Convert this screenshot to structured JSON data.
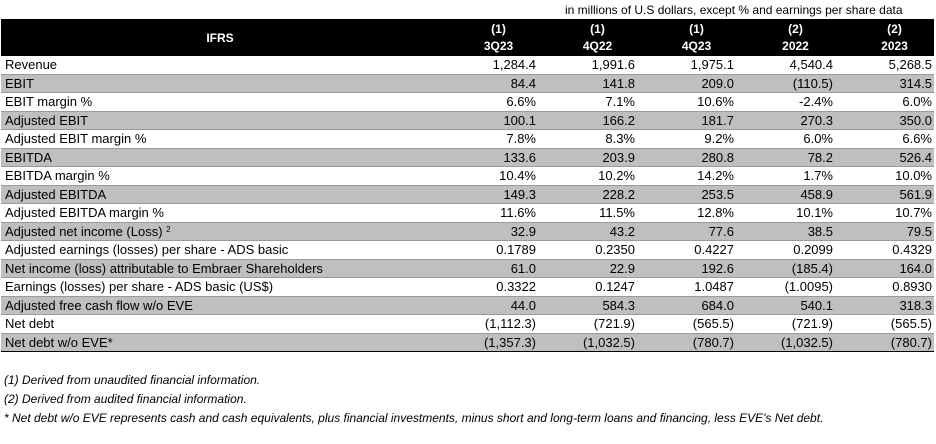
{
  "unit_note": "in millions of U.S dollars, except % and earnings per share data",
  "header": {
    "label": "IFRS",
    "columns": [
      {
        "note": "(1)",
        "period": "3Q23"
      },
      {
        "note": "(1)",
        "period": "4Q22"
      },
      {
        "note": "(1)",
        "period": "4Q23"
      },
      {
        "note": "(2)",
        "period": "2022"
      },
      {
        "note": "(2)",
        "period": "2023"
      }
    ]
  },
  "rows": [
    {
      "label": "Revenue",
      "values": [
        "1,284.4",
        "1,991.6",
        "1,975.1",
        "4,540.4",
        "5,268.5"
      ],
      "shaded": false
    },
    {
      "label": "EBIT",
      "values": [
        "84.4",
        "141.8",
        "209.0",
        "(110.5)",
        "314.5"
      ],
      "shaded": true
    },
    {
      "label": "EBIT margin %",
      "values": [
        "6.6%",
        "7.1%",
        "10.6%",
        "-2.4%",
        "6.0%"
      ],
      "shaded": false
    },
    {
      "label": "Adjusted EBIT",
      "values": [
        "100.1",
        "166.2",
        "181.7",
        "270.3",
        "350.0"
      ],
      "shaded": true
    },
    {
      "label": "Adjusted EBIT margin %",
      "values": [
        "7.8%",
        "8.3%",
        "9.2%",
        "6.0%",
        "6.6%"
      ],
      "shaded": false
    },
    {
      "label": "EBITDA",
      "values": [
        "133.6",
        "203.9",
        "280.8",
        "78.2",
        "526.4"
      ],
      "shaded": true
    },
    {
      "label": "EBITDA margin %",
      "values": [
        "10.4%",
        "10.2%",
        "14.2%",
        "1.7%",
        "10.0%"
      ],
      "shaded": false
    },
    {
      "label": "Adjusted EBITDA",
      "values": [
        "149.3",
        "228.2",
        "253.5",
        "458.9",
        "561.9"
      ],
      "shaded": true
    },
    {
      "label": "Adjusted EBITDA margin %",
      "values": [
        "11.6%",
        "11.5%",
        "12.8%",
        "10.1%",
        "10.7%"
      ],
      "shaded": false
    },
    {
      "label": "Adjusted net income (Loss)",
      "sup": "2",
      "values": [
        "32.9",
        "43.2",
        "77.6",
        "38.5",
        "79.5"
      ],
      "shaded": true
    },
    {
      "label": "Adjusted earnings (losses) per share - ADS basic",
      "values": [
        "0.1789",
        "0.2350",
        "0.4227",
        "0.2099",
        "0.4329"
      ],
      "shaded": false
    },
    {
      "label": "Net income (loss) attributable to Embraer Shareholders",
      "values": [
        "61.0",
        "22.9",
        "192.6",
        "(185.4)",
        "164.0"
      ],
      "shaded": true
    },
    {
      "label": "Earnings (losses) per share - ADS basic (US$)",
      "values": [
        "0.3322",
        "0.1247",
        "1.0487",
        "(1.0095)",
        "0.8930"
      ],
      "shaded": false
    },
    {
      "label": "Adjusted free cash flow w/o EVE",
      "values": [
        "44.0",
        "584.3",
        "684.0",
        "540.1",
        "318.3"
      ],
      "shaded": true
    },
    {
      "label": "Net debt",
      "values": [
        "(1,112.3)",
        "(721.9)",
        "(565.5)",
        "(721.9)",
        "(565.5)"
      ],
      "shaded": false
    },
    {
      "label": "Net debt w/o EVE*",
      "values": [
        "(1,357.3)",
        "(1,032.5)",
        "(780.7)",
        "(1,032.5)",
        "(780.7)"
      ],
      "shaded": true
    }
  ],
  "footnotes": [
    "(1) Derived from unaudited financial information.",
    "(2) Derived from audited financial information.",
    "* Net debt w/o EVE represents cash and cash equivalents, plus financial investments, minus short and long-term loans and financing, less EVE's Net debt."
  ]
}
